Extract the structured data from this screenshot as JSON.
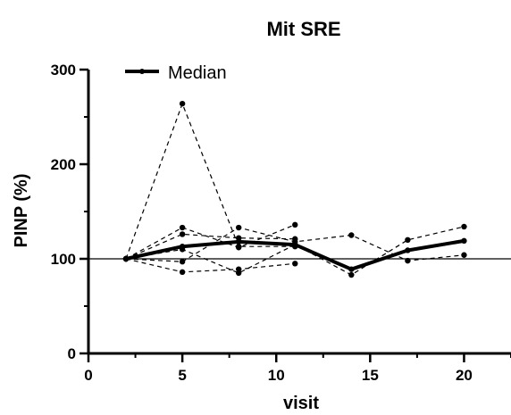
{
  "chart_data": {
    "type": "line",
    "title": "Mit SRE",
    "xlabel": "visit",
    "ylabel": "PINP (%)",
    "xlim": [
      0,
      22.5
    ],
    "ylim": [
      0,
      300
    ],
    "x_ticks": [
      0,
      5,
      10,
      15,
      20
    ],
    "y_ticks": [
      0,
      100,
      200,
      300
    ],
    "reference_line_y": 100,
    "legend": {
      "position": "top-left",
      "entries": [
        "Median"
      ]
    },
    "colors": {
      "line": "#000000",
      "background": "#ffffff"
    },
    "series": [
      {
        "name": "Median",
        "style": "solid-bold",
        "x": [
          2,
          5,
          8,
          11,
          14,
          17,
          20
        ],
        "y": [
          100,
          113,
          118,
          115,
          89,
          109,
          119
        ]
      },
      {
        "style": "dashed",
        "x": [
          2,
          5,
          8,
          11
        ],
        "y": [
          100,
          264,
          113,
          113
        ]
      },
      {
        "style": "dashed",
        "x": [
          2,
          5,
          8,
          11
        ],
        "y": [
          100,
          133,
          112,
          136
        ]
      },
      {
        "style": "dashed",
        "x": [
          2,
          5,
          8,
          11
        ],
        "y": [
          100,
          126,
          122,
          121
        ]
      },
      {
        "style": "dashed",
        "x": [
          2,
          5,
          8,
          11
        ],
        "y": [
          100,
          86,
          89,
          95
        ]
      },
      {
        "style": "dashed",
        "x": [
          2,
          5,
          8,
          11,
          14,
          17,
          20
        ],
        "y": [
          100,
          97,
          133,
          118,
          125,
          98,
          104
        ]
      },
      {
        "style": "dashed",
        "x": [
          2,
          5,
          8,
          11,
          14,
          17,
          20
        ],
        "y": [
          100,
          110,
          85,
          115,
          83,
          120,
          134
        ]
      }
    ]
  }
}
